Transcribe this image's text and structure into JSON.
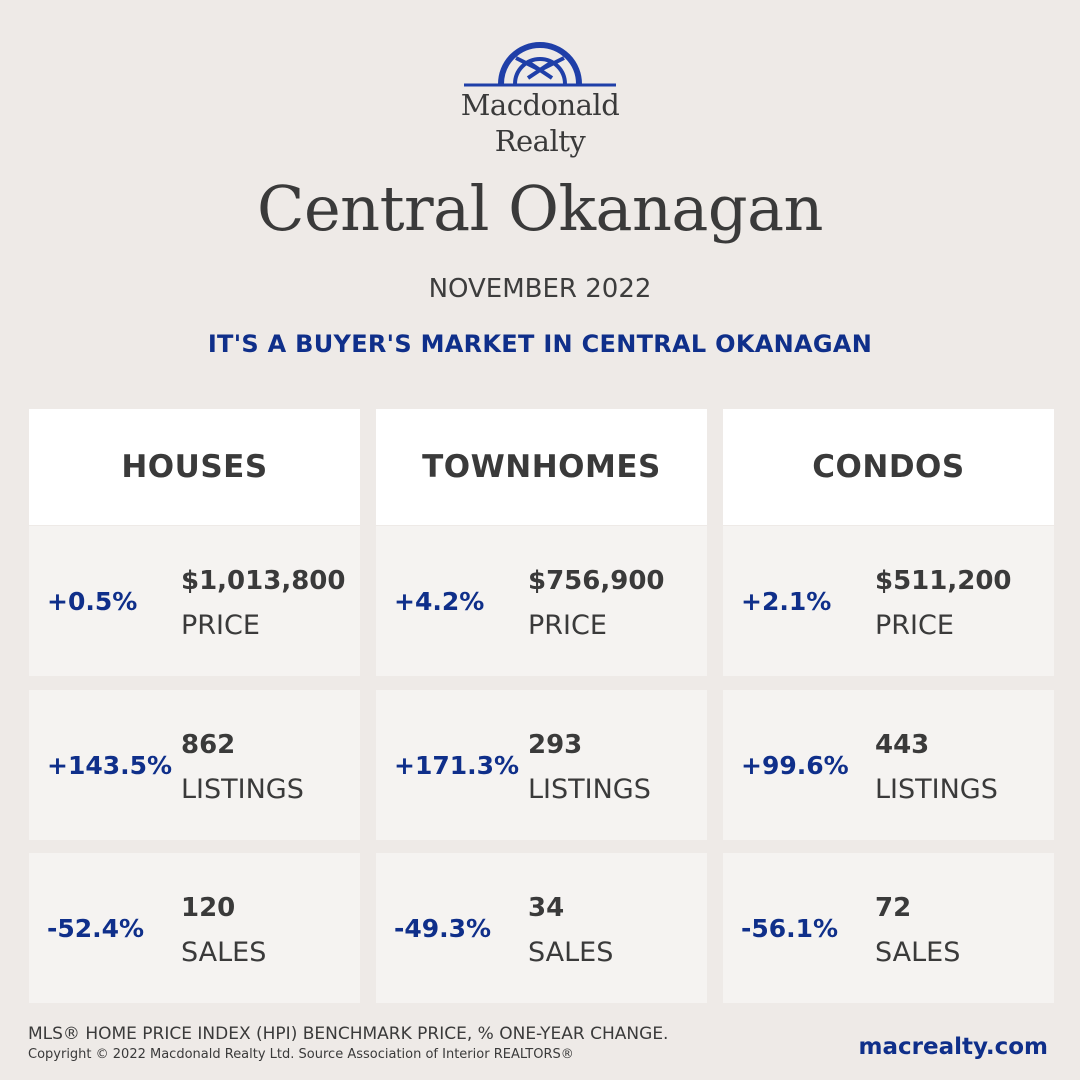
{
  "brand": {
    "line1": "Macdonald",
    "line2": "Realty",
    "logo_icon": "arch-logo-icon",
    "color": "#1f3fa8"
  },
  "region_title": "Central Okanagan",
  "period": "NOVEMBER 2022",
  "headline": "IT'S A BUYER'S MARKET IN CENTRAL OKANAGAN",
  "columns": [
    {
      "header": "HOUSES",
      "stats": [
        {
          "change": "+0.5%",
          "value": "$1,013,800",
          "label": "PRICE"
        },
        {
          "change": "+143.5%",
          "value": "862",
          "label": "LISTINGS"
        },
        {
          "change": "-52.4%",
          "value": "120",
          "label": "SALES"
        }
      ]
    },
    {
      "header": "TOWNHOMES",
      "stats": [
        {
          "change": "+4.2%",
          "value": "$756,900",
          "label": "PRICE"
        },
        {
          "change": "+171.3%",
          "value": "293",
          "label": "LISTINGS"
        },
        {
          "change": "-49.3%",
          "value": "34",
          "label": "SALES"
        }
      ]
    },
    {
      "header": "CONDOS",
      "stats": [
        {
          "change": "+2.1%",
          "value": "$511,200",
          "label": "PRICE"
        },
        {
          "change": "+99.6%",
          "value": "443",
          "label": "LISTINGS"
        },
        {
          "change": "-56.1%",
          "value": "72",
          "label": "SALES"
        }
      ]
    }
  ],
  "footer": {
    "note": "MLS® HOME PRICE INDEX (HPI) BENCHMARK PRICE, % ONE-YEAR CHANGE.",
    "copyright": "Copyright © 2022 Macdonald Realty Ltd. Source Association of Interior REALTORS®",
    "website": "macrealty.com"
  },
  "colors": {
    "accent": "#0f2f8a",
    "background": "#eeeae7",
    "card": "#f5f3f1",
    "header_card": "#ffffff",
    "text": "#3a3a3a"
  }
}
